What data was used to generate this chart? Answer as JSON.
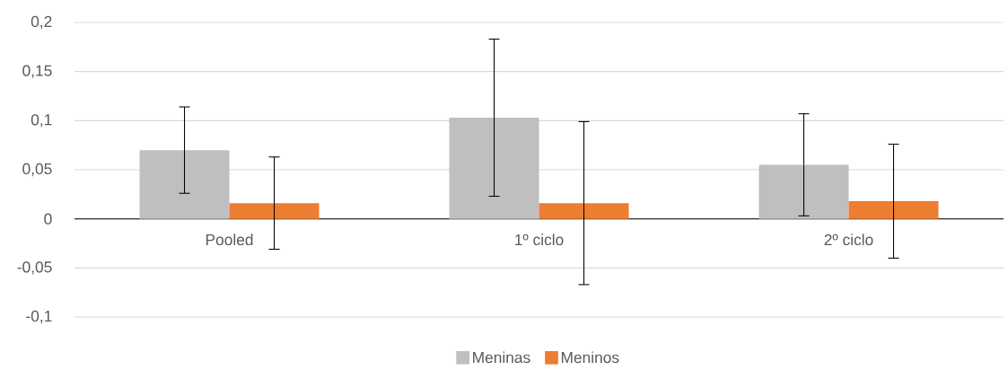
{
  "chart_data": {
    "type": "bar",
    "categories": [
      "Pooled",
      "1º ciclo",
      "2º ciclo"
    ],
    "series": [
      {
        "name": "Meninas",
        "color": "#bfbfbf",
        "values": [
          0.07,
          0.103,
          0.055
        ],
        "errors": [
          0.044,
          0.08,
          0.052
        ]
      },
      {
        "name": "Meninos",
        "color": "#ed7d31",
        "values": [
          0.016,
          0.016,
          0.018
        ],
        "errors": [
          0.047,
          0.083,
          0.058
        ]
      }
    ],
    "ylim": [
      -0.1,
      0.2
    ],
    "yticks": [
      {
        "value": -0.1,
        "label": "-0,1"
      },
      {
        "value": -0.05,
        "label": "-0,05"
      },
      0,
      {
        "value": 0.05,
        "label": "0,05"
      },
      {
        "value": 0.1,
        "label": "0,1"
      },
      {
        "value": 0.15,
        "label": "0,15"
      },
      {
        "value": 0.2,
        "label": "0,2"
      }
    ],
    "grid": "y",
    "legend": "bottom"
  }
}
